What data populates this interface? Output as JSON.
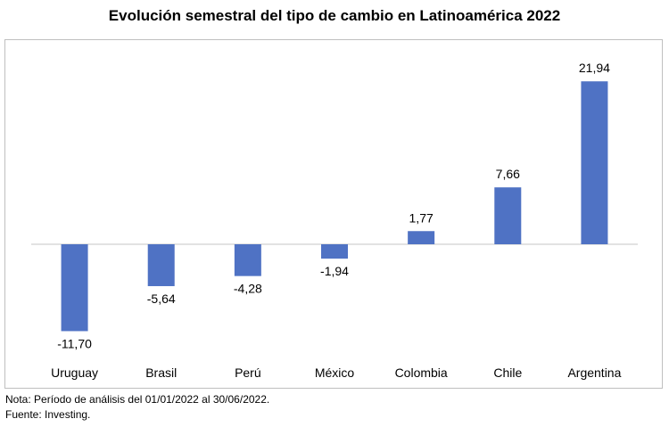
{
  "chart_data": {
    "type": "bar",
    "title": "Evolución semestral del tipo de cambio en Latinoamérica 2022",
    "categories": [
      "Uruguay",
      "Brasil",
      "Perú",
      "México",
      "Colombia",
      "Chile",
      "Argentina"
    ],
    "values": [
      -11.7,
      -5.64,
      -4.28,
      -1.94,
      1.77,
      7.66,
      21.94
    ],
    "value_labels": [
      "-11,70",
      "-5,64",
      "-4,28",
      "-1,94",
      "1,77",
      "7,66",
      "21,94"
    ],
    "xlabel": "",
    "ylabel": "",
    "ylim": [
      -15,
      25
    ],
    "grid": false,
    "bar_color": "#4f72c4",
    "axis_color": "#d9d9d9"
  },
  "footer": {
    "note": "Nota: Período de análisis del 01/01/2022 al 30/06/2022.",
    "source": "Fuente: Investing."
  }
}
